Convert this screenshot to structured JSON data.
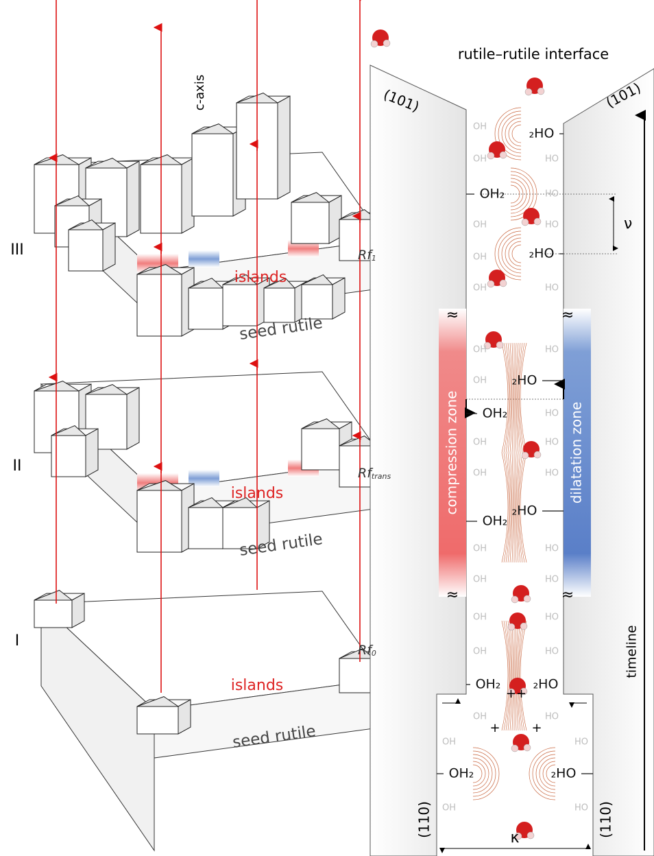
{
  "title": "rutile–rutile interface",
  "crystal": {
    "axis_label": "c-axis",
    "stages": [
      {
        "numeral": "III",
        "rf": {
          "base": "Rf",
          "sub": "1"
        },
        "islands": "islands",
        "substrate": "seed rutile"
      },
      {
        "numeral": "II",
        "rf": {
          "base": "Rf",
          "sub": "trans"
        },
        "islands": "islands",
        "substrate": "seed rutile"
      },
      {
        "numeral": "I",
        "rf": {
          "base": "Rf",
          "sub": "0"
        },
        "islands": "islands",
        "substrate": "seed rutile"
      }
    ]
  },
  "interface": {
    "faces": {
      "upper_left": "(101)",
      "upper_right": "(101)",
      "lower_left": "(110)",
      "lower_right": "(110)"
    },
    "compression_zone": "compression zone",
    "dilatation_zone": "dilatation zone",
    "timeline": "timeline",
    "spacing": "ν",
    "width": "κ",
    "break_marks": [
      "≈",
      "≈",
      "≈",
      "≈"
    ],
    "charges": [
      "++",
      "+",
      "+"
    ],
    "left_groups": [
      "OH",
      "OH",
      "OH₂",
      "OH",
      "OH",
      "OH",
      "OH",
      "OH",
      "OH₂",
      "OH",
      "OH",
      "OH₂",
      "OH",
      "OH",
      "OH",
      "OH",
      "OH₂",
      "OH",
      "OH",
      "OH₂",
      "OH"
    ],
    "right_groups": [
      "₂HO",
      "HO",
      "HO",
      "HO",
      "₂HO",
      "HO",
      "HO",
      "₂HO",
      "HO",
      "HO",
      "HO",
      "₂HO",
      "HO",
      "HO",
      "HO",
      "HO",
      "₂HO",
      "HO",
      "HO",
      "₂HO",
      "HO"
    ]
  }
}
